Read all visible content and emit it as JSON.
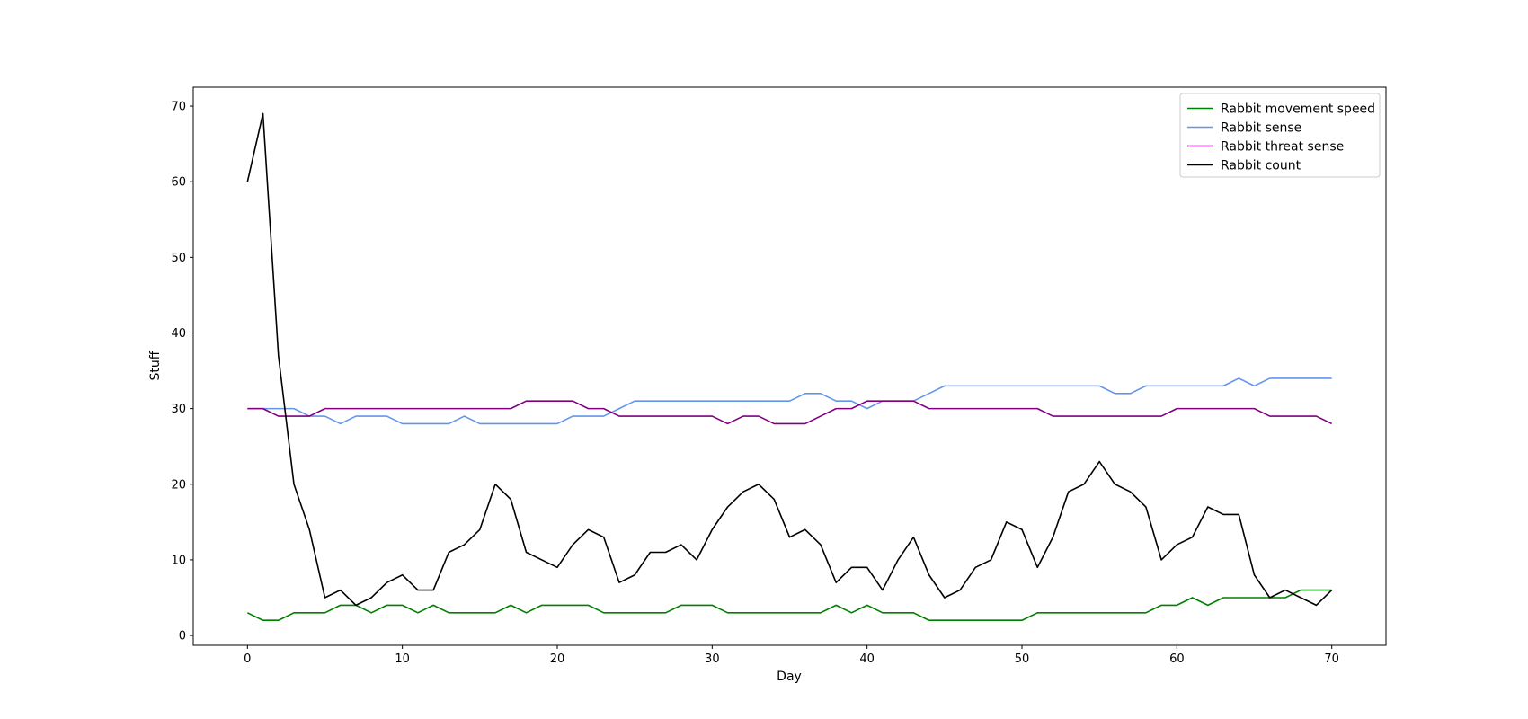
{
  "chart_data": {
    "type": "line",
    "title": "",
    "xlabel": "Day",
    "ylabel": "Stuff",
    "xlim": [
      -3.5,
      73.5
    ],
    "ylim": [
      -1.3,
      72.5
    ],
    "xticks": [
      0,
      10,
      20,
      30,
      40,
      50,
      60,
      70
    ],
    "yticks": [
      0,
      10,
      20,
      30,
      40,
      50,
      60,
      70
    ],
    "x": [
      0,
      1,
      2,
      3,
      4,
      5,
      6,
      7,
      8,
      9,
      10,
      11,
      12,
      13,
      14,
      15,
      16,
      17,
      18,
      19,
      20,
      21,
      22,
      23,
      24,
      25,
      26,
      27,
      28,
      29,
      30,
      31,
      32,
      33,
      34,
      35,
      36,
      37,
      38,
      39,
      40,
      41,
      42,
      43,
      44,
      45,
      46,
      47,
      48,
      49,
      50,
      51,
      52,
      53,
      54,
      55,
      56,
      57,
      58,
      59,
      60,
      61,
      62,
      63,
      64,
      65,
      66,
      67,
      68,
      69,
      70
    ],
    "legend_position": "top-right",
    "grid": false,
    "series": [
      {
        "name": "Rabbit movement speed",
        "color": "#008000",
        "values": [
          3,
          2,
          2,
          3,
          3,
          3,
          4,
          4,
          3,
          4,
          4,
          3,
          4,
          3,
          3,
          3,
          3,
          4,
          3,
          4,
          4,
          4,
          4,
          3,
          3,
          3,
          3,
          3,
          4,
          4,
          4,
          3,
          3,
          3,
          3,
          3,
          3,
          3,
          4,
          3,
          4,
          3,
          3,
          3,
          2,
          2,
          2,
          2,
          2,
          2,
          2,
          3,
          3,
          3,
          3,
          3,
          3,
          3,
          3,
          4,
          4,
          5,
          4,
          5,
          5,
          5,
          5,
          5,
          6,
          6,
          6
        ]
      },
      {
        "name": "Rabbit sense",
        "color": "#6495ED",
        "values": [
          30,
          30,
          30,
          30,
          29,
          29,
          28,
          29,
          29,
          29,
          28,
          28,
          28,
          28,
          29,
          28,
          28,
          28,
          28,
          28,
          28,
          29,
          29,
          29,
          30,
          31,
          31,
          31,
          31,
          31,
          31,
          31,
          31,
          31,
          31,
          31,
          32,
          32,
          31,
          31,
          30,
          31,
          31,
          31,
          32,
          33,
          33,
          33,
          33,
          33,
          33,
          33,
          33,
          33,
          33,
          33,
          32,
          32,
          33,
          33,
          33,
          33,
          33,
          33,
          34,
          33,
          34,
          34,
          34,
          34,
          34
        ]
      },
      {
        "name": "Rabbit threat sense",
        "color": "#800080",
        "values": [
          30,
          30,
          29,
          29,
          29,
          30,
          30,
          30,
          30,
          30,
          30,
          30,
          30,
          30,
          30,
          30,
          30,
          30,
          31,
          31,
          31,
          31,
          30,
          30,
          29,
          29,
          29,
          29,
          29,
          29,
          29,
          28,
          29,
          29,
          28,
          28,
          28,
          29,
          30,
          30,
          31,
          31,
          31,
          31,
          30,
          30,
          30,
          30,
          30,
          30,
          30,
          30,
          29,
          29,
          29,
          29,
          29,
          29,
          29,
          29,
          30,
          30,
          30,
          30,
          30,
          30,
          29,
          29,
          29,
          29,
          28
        ]
      },
      {
        "name": "Rabbit count",
        "color": "#000000",
        "values": [
          60,
          69,
          37,
          20,
          14,
          5,
          6,
          4,
          5,
          7,
          8,
          6,
          6,
          11,
          12,
          14,
          20,
          18,
          11,
          10,
          9,
          12,
          14,
          13,
          7,
          8,
          11,
          11,
          12,
          10,
          14,
          17,
          19,
          20,
          18,
          13,
          14,
          12,
          7,
          9,
          9,
          6,
          10,
          13,
          8,
          5,
          6,
          9,
          10,
          15,
          14,
          9,
          13,
          19,
          20,
          23,
          20,
          19,
          17,
          10,
          12,
          13,
          17,
          16,
          16,
          8,
          5,
          6,
          5,
          4,
          6
        ]
      }
    ]
  }
}
